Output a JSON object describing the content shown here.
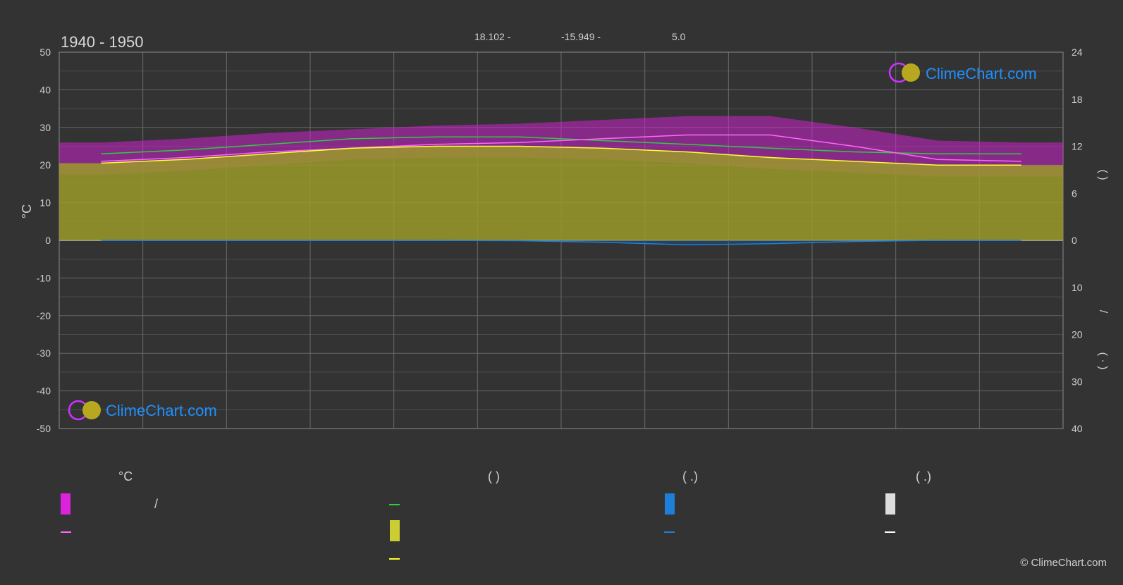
{
  "header": {
    "period": "1940 - 1950",
    "coord_lat": "18.102 -",
    "coord_lon": "-15.949 -",
    "elevation": "5.0"
  },
  "axes": {
    "left_unit": "°C",
    "right_upper_label": "(     )",
    "right_lower_label_1": "/",
    "right_lower_label_2": "(   ·   )"
  },
  "logo": {
    "text": "ClimeChart.com"
  },
  "copyright": "© ClimeChart.com",
  "legend": {
    "col1_title": "°C",
    "col1_item1": "/",
    "col2_title": "(          )",
    "col3_title": "(    .)",
    "col4_title": "(    .)"
  },
  "colors": {
    "background": "#333333",
    "daylight": "#2ecc40",
    "sunshine": "#ffff33",
    "max_temp": "#ff66ff",
    "temp_band": "#cc22cc",
    "rain": "#1e7fd8",
    "grid": "#666666"
  },
  "chart_data": {
    "type": "area",
    "title": "1940 - 1950",
    "x": [
      "",
      "",
      "",
      "",
      "",
      "",
      "",
      "",
      "",
      "",
      "",
      ""
    ],
    "ylabel": "°C",
    "ylim": [
      -50,
      50
    ],
    "y_ticks": [
      50,
      40,
      30,
      20,
      10,
      0,
      -10,
      -20,
      -30,
      -40,
      -50
    ],
    "y_right_upper_ticks": [
      24,
      18,
      12,
      6,
      0
    ],
    "y_right_lower_ticks": [
      0,
      10,
      20,
      30,
      40
    ],
    "grid": true,
    "series": [
      {
        "values": [
          23.0,
          24.0,
          25.5,
          27.0,
          27.5,
          27.5,
          26.5,
          25.5,
          24.5,
          23.5,
          23.0,
          23.0
        ]
      },
      {
        "values": [
          20.5,
          21.5,
          23.0,
          24.5,
          25.0,
          25.0,
          24.5,
          23.5,
          22.0,
          21.0,
          20.0,
          20.0
        ]
      },
      {
        "values": [
          21.0,
          22.0,
          23.5,
          24.5,
          25.5,
          26.0,
          27.0,
          28.0,
          28.0,
          25.0,
          21.5,
          21.0
        ]
      },
      {
        "values": [
          0.0,
          0.0,
          0.0,
          0.0,
          0.0,
          0.1,
          0.5,
          1.2,
          0.9,
          0.3,
          0.0,
          0.0
        ]
      }
    ]
  }
}
